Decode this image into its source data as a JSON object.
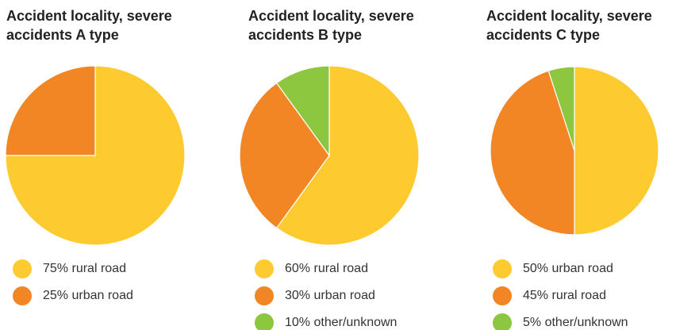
{
  "chart_data": [
    {
      "type": "pie",
      "title": "Accident locality, severe accidents A type",
      "categories": [
        "rural road",
        "urban road"
      ],
      "values": [
        75,
        25
      ],
      "value_labels": [
        "75%",
        "25%"
      ],
      "colors": [
        "#fdcb30",
        "#f28524"
      ]
    },
    {
      "type": "pie",
      "title": "Accident locality, severe accidents B type",
      "categories": [
        "rural road",
        "urban road",
        "other/unknown"
      ],
      "values": [
        60,
        30,
        10
      ],
      "value_labels": [
        "60%",
        "30%",
        "10%"
      ],
      "colors": [
        "#fdcb30",
        "#f28524",
        "#8dc63f"
      ]
    },
    {
      "type": "pie",
      "title": "Accident locality, severe accidents C type",
      "categories": [
        "urban road",
        "rural road",
        "other/unknown"
      ],
      "values": [
        50,
        45,
        5
      ],
      "value_labels": [
        "50%",
        "45%",
        "5%"
      ],
      "colors": [
        "#fdcb30",
        "#f28524",
        "#8dc63f"
      ]
    }
  ]
}
